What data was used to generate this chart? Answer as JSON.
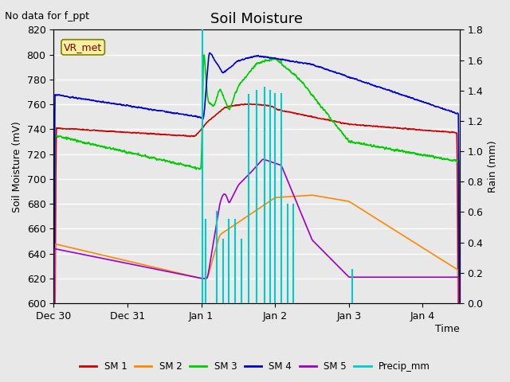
{
  "title": "Soil Moisture",
  "xlabel": "Time",
  "ylabel_left": "Soil Moisture (mV)",
  "ylabel_right": "Rain (mm)",
  "annotation_top_left": "No data for f_ppt",
  "box_label": "VR_met",
  "ylim_left": [
    600,
    820
  ],
  "ylim_right": [
    0.0,
    1.8
  ],
  "yticks_left": [
    600,
    620,
    640,
    660,
    680,
    700,
    720,
    740,
    760,
    780,
    800,
    820
  ],
  "yticks_right": [
    0.0,
    0.2,
    0.4,
    0.6,
    0.8,
    1.0,
    1.2,
    1.4,
    1.6,
    1.8
  ],
  "xtick_positions": [
    0,
    24,
    48,
    72,
    96,
    120
  ],
  "xtick_labels": [
    "Dec 30",
    "Dec 31",
    "Jan 1",
    "Jan 2",
    "Jan 3",
    "Jan 4"
  ],
  "xlim": [
    0,
    132
  ],
  "bg_color": "#e8e8e8",
  "grid_color": "#ffffff",
  "colors": {
    "SM1": "#cc0000",
    "SM2": "#ff8800",
    "SM3": "#00cc00",
    "SM4": "#0000cc",
    "SM5": "#9900cc",
    "Precip": "#00cccc"
  },
  "title_fontsize": 13,
  "axis_fontsize": 9,
  "legend_fontsize": 8.5,
  "figsize": [
    6.4,
    4.8
  ],
  "dpi": 100
}
